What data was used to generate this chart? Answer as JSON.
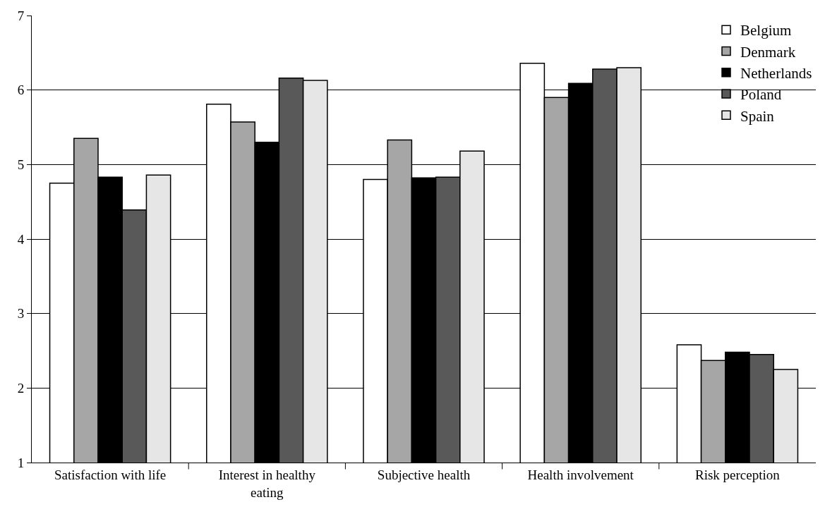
{
  "chart_data": {
    "type": "bar",
    "categories": [
      "Satisfaction with life",
      "Interest in healthy eating",
      "Subjective health",
      "Health involvement",
      "Risk perception"
    ],
    "series": [
      {
        "name": "Belgium",
        "color": "#ffffff",
        "values": [
          4.75,
          5.81,
          4.8,
          6.36,
          2.58
        ]
      },
      {
        "name": "Denmark",
        "color": "#a6a6a6",
        "values": [
          5.35,
          5.57,
          5.33,
          5.9,
          2.37
        ]
      },
      {
        "name": "Netherlands",
        "color": "#000000",
        "values": [
          4.83,
          5.3,
          4.82,
          6.09,
          2.48
        ]
      },
      {
        "name": "Poland",
        "color": "#595959",
        "values": [
          4.39,
          6.16,
          4.83,
          6.28,
          2.45
        ]
      },
      {
        "name": "Spain",
        "color": "#e6e6e6",
        "values": [
          4.86,
          6.13,
          5.18,
          6.3,
          2.25
        ]
      }
    ],
    "ylim": [
      1,
      7
    ],
    "yticks": [
      1,
      2,
      3,
      4,
      5,
      6,
      7
    ],
    "grid": "y",
    "legend": "top right"
  }
}
